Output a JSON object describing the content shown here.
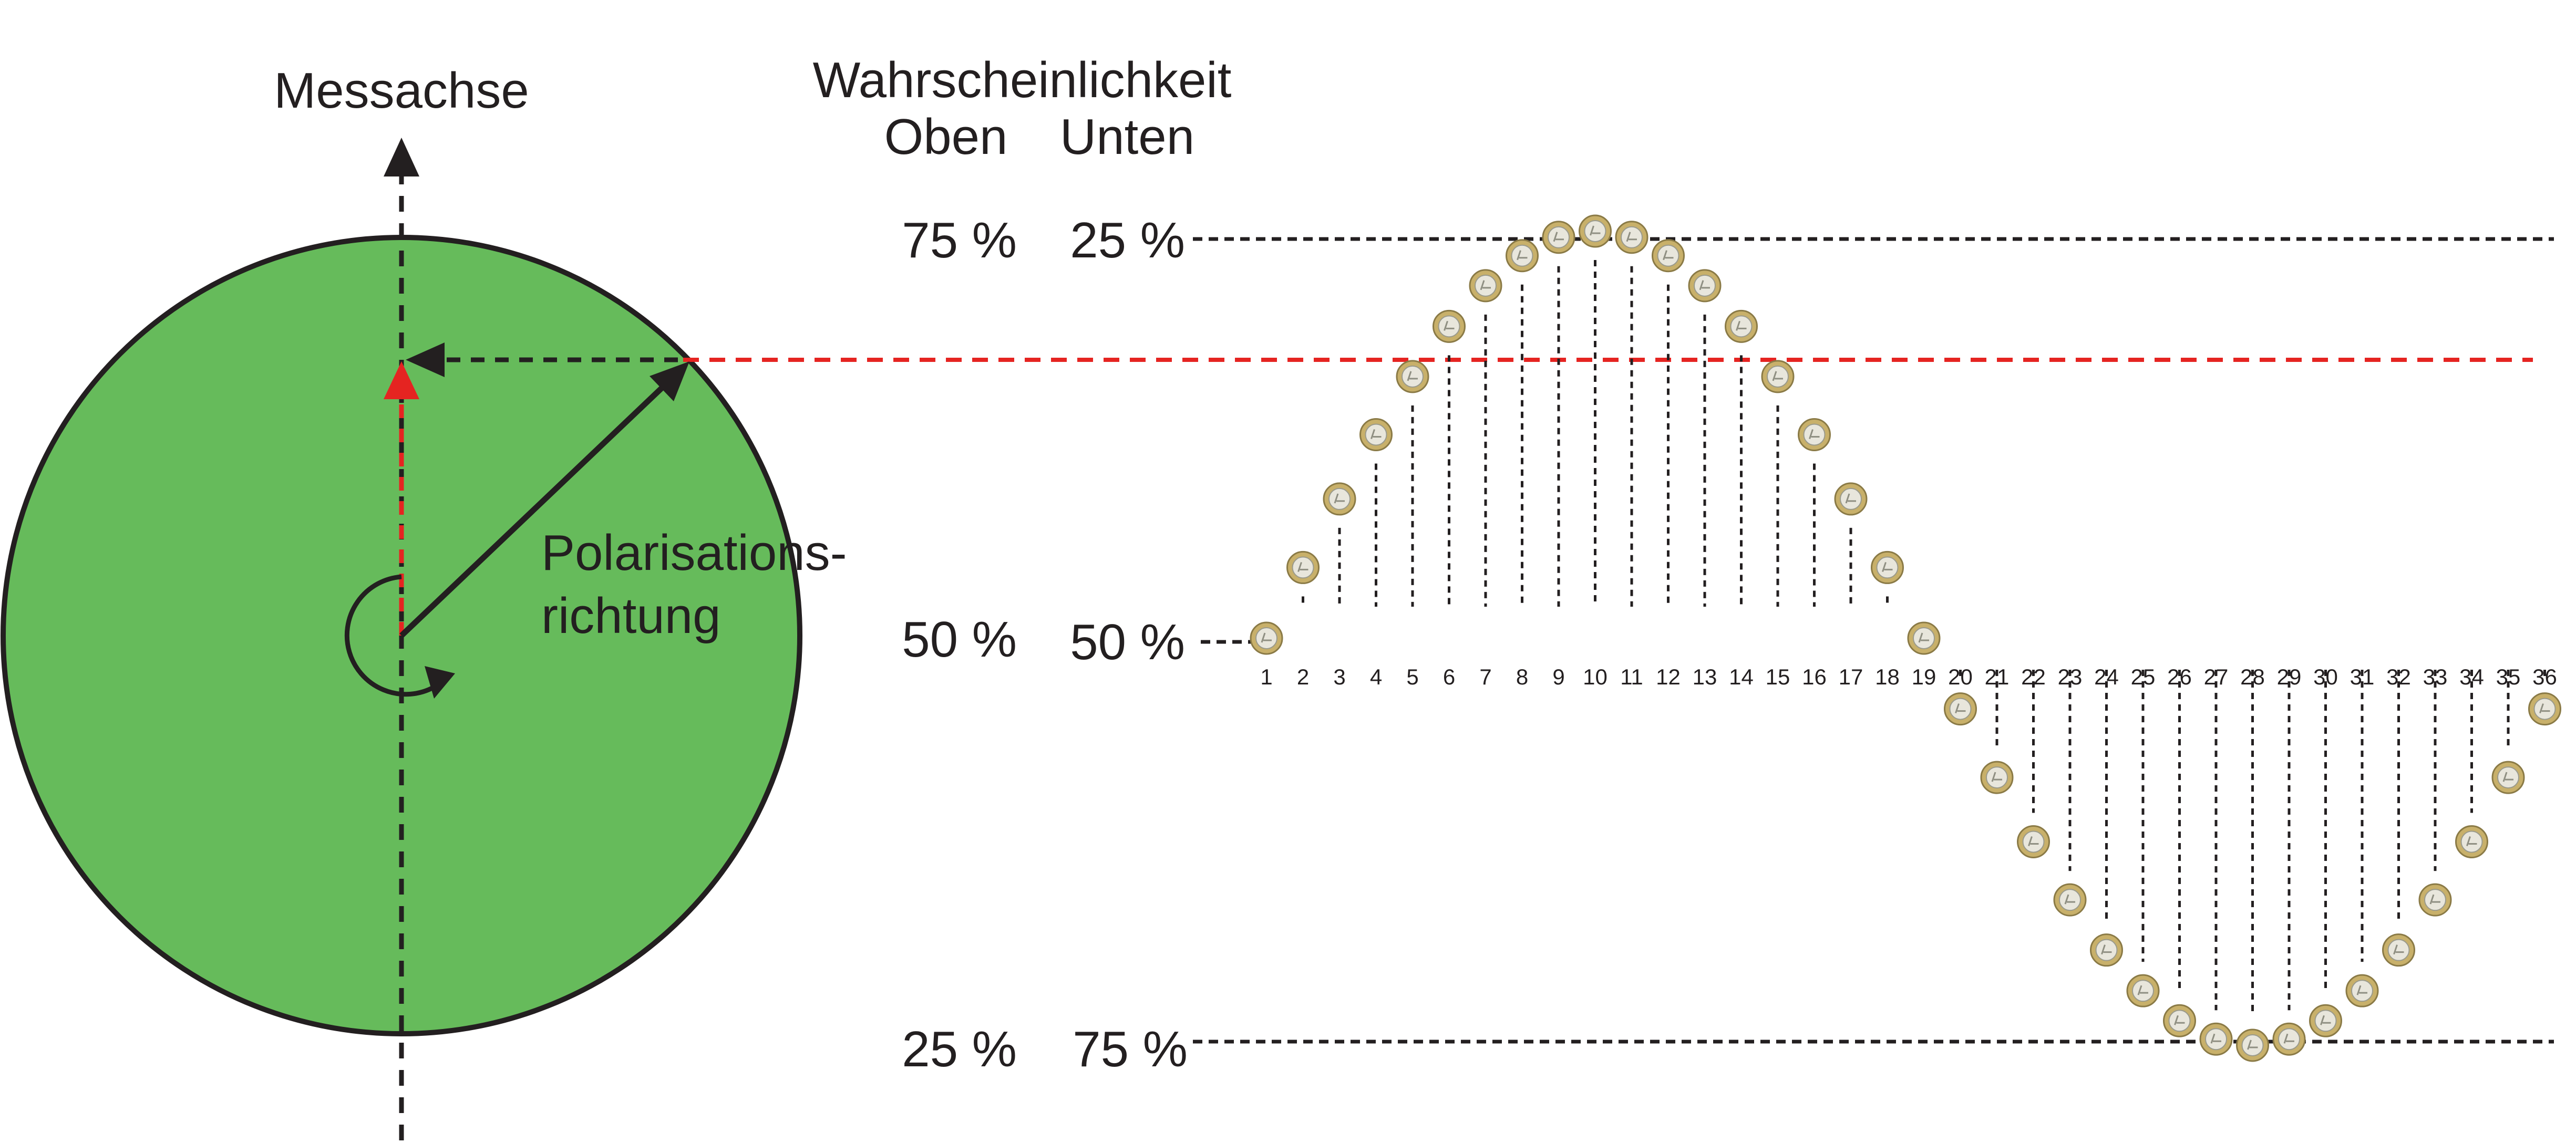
{
  "labels": {
    "measurement_axis": "Messachse",
    "polarization_line1": "Polarisations-",
    "polarization_line2": "richtung",
    "probability_title": "Wahrscheinlichkeit",
    "col_upper": "Oben",
    "col_lower": "Unten"
  },
  "levels": [
    {
      "upper": "75 %",
      "lower": "25 %",
      "fraction_upper": 0.75
    },
    {
      "upper": "50 %",
      "lower": "50 %",
      "fraction_upper": 0.5
    },
    {
      "upper": "25 %",
      "lower": "75 %",
      "fraction_upper": 0.25
    }
  ],
  "chart_data": {
    "type": "scatter",
    "x": [
      1,
      2,
      3,
      4,
      5,
      6,
      7,
      8,
      9,
      10,
      11,
      12,
      13,
      14,
      15,
      16,
      17,
      18,
      19,
      20,
      21,
      22,
      23,
      24,
      25,
      26,
      27,
      28,
      29,
      30,
      31,
      32,
      33,
      34,
      35,
      36
    ],
    "tick_labels": [
      "1",
      "2",
      "3",
      "4",
      "5",
      "6",
      "7",
      "8",
      "9",
      "10",
      "11",
      "12",
      "13",
      "14",
      "15",
      "16",
      "17",
      "18",
      "19",
      "20",
      "21",
      "22",
      "23",
      "24",
      "25",
      "26",
      "27",
      "28",
      "29",
      "30",
      "31",
      "32",
      "33",
      "34",
      "35",
      "36"
    ],
    "coin_side": [
      "up",
      "up",
      "up",
      "up",
      "up",
      "up",
      "up",
      "up",
      "up",
      "up",
      "up",
      "up",
      "up",
      "up",
      "up",
      "up",
      "up",
      "up",
      "up",
      "down",
      "down",
      "down",
      "down",
      "down",
      "down",
      "down",
      "down",
      "down",
      "down",
      "down",
      "down",
      "down",
      "down",
      "down",
      "down",
      "down"
    ],
    "ylim": [
      0.25,
      0.75
    ],
    "highlight_level": 0.68
  },
  "colors": {
    "disc_fill": "#66bb5b",
    "ink": "#231f20",
    "highlight": "#e52421",
    "coin_outer": "#c8b06a",
    "coin_inner": "#e8e6dc"
  },
  "icons": {
    "coin": "euro-coin-icon",
    "rotation": "rotation-arrow-icon"
  }
}
